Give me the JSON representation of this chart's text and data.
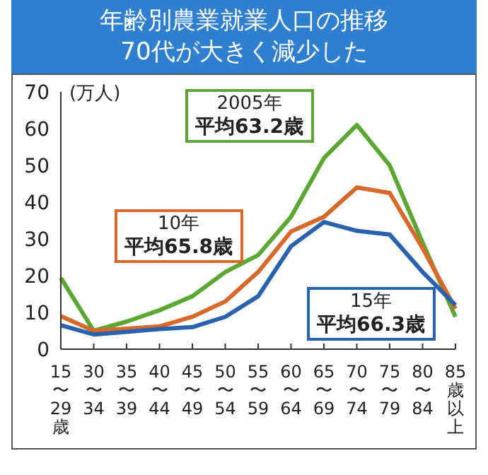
{
  "chart_data": {
    "type": "line",
    "title": "年齢別農業就業人口の推移\n70代が大きく減少した",
    "ylabel": "(万人)",
    "categories": [
      "15〜29歳",
      "30〜34",
      "35〜39",
      "40〜44",
      "45〜49",
      "50〜54",
      "55〜59",
      "60〜64",
      "65〜69",
      "70〜74",
      "75〜79",
      "80〜84",
      "85歳以上"
    ],
    "series": [
      {
        "name": "2005年平均63.2歳",
        "color": "#5aa832",
        "values": [
          19.4,
          5,
          7.5,
          10.6,
          14.4,
          21,
          25.6,
          36,
          52,
          61,
          50,
          29,
          8.8
        ]
      },
      {
        "name": "10年平均65.8歳",
        "color": "#d8692a",
        "values": [
          9,
          5,
          5.6,
          6.2,
          8.8,
          13,
          21,
          32,
          36,
          44,
          42.5,
          27.5,
          11
        ]
      },
      {
        "name": "15年平均66.3歳",
        "color": "#2a63ad",
        "values": [
          6.5,
          4,
          4.7,
          5.5,
          6,
          8.8,
          14.4,
          28,
          34.6,
          32.2,
          31.2,
          21,
          12
        ]
      }
    ],
    "ylim": [
      0,
      70
    ],
    "yticks": [
      0,
      10,
      20,
      30,
      40,
      50,
      60,
      70
    ],
    "legend": false,
    "marker": "none",
    "line_style": "solid"
  }
}
